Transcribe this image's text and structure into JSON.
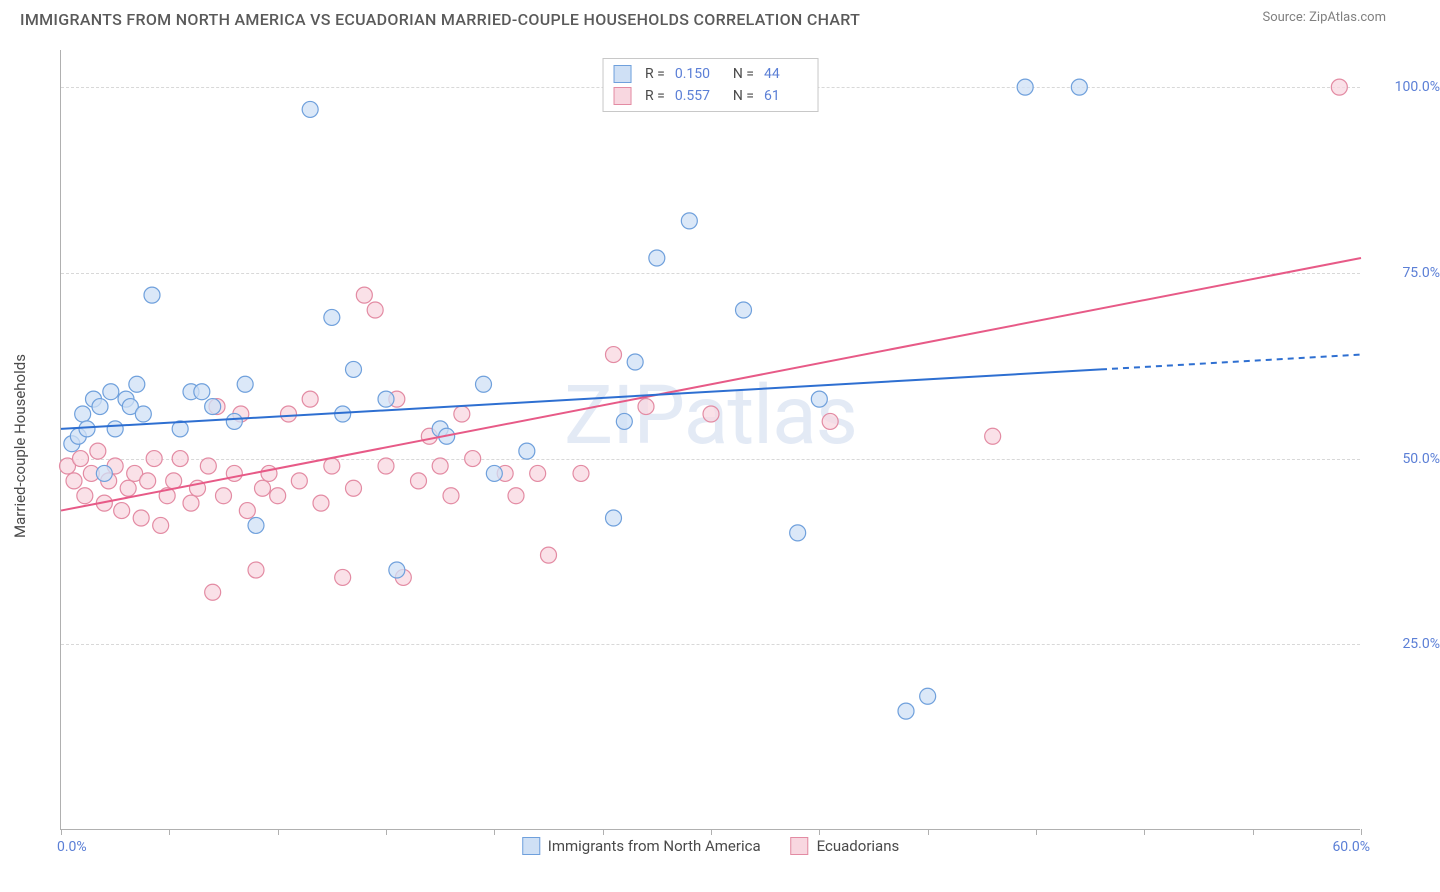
{
  "title": "IMMIGRANTS FROM NORTH AMERICA VS ECUADORIAN MARRIED-COUPLE HOUSEHOLDS CORRELATION CHART",
  "source_label": "Source: ",
  "source_name": "ZipAtlas.com",
  "watermark": "ZIPatlas",
  "ylabel": "Married-couple Households",
  "chart": {
    "type": "scatter-with-regression",
    "background_color": "#ffffff",
    "grid_color": "#d8d8d8",
    "axis_color": "#b0b0b0",
    "tick_label_color": "#5b7fd6",
    "xlim": [
      0,
      60
    ],
    "ylim": [
      0,
      105
    ],
    "xticks": [
      0,
      5,
      10,
      15,
      20,
      25,
      30,
      35,
      40,
      45,
      50,
      55,
      60
    ],
    "xlim_labels": {
      "left": "0.0%",
      "right": "60.0%"
    },
    "yticks": [
      {
        "v": 25,
        "label": "25.0%"
      },
      {
        "v": 50,
        "label": "50.0%"
      },
      {
        "v": 75,
        "label": "75.0%"
      },
      {
        "v": 100,
        "label": "100.0%"
      }
    ],
    "marker_radius": 8,
    "marker_stroke_width": 1.2,
    "line_width": 2,
    "series": [
      {
        "key": "blue",
        "name": "Immigrants from North America",
        "fill": "#cfe0f5",
        "stroke": "#6fa0dc",
        "line_color": "#2e6fd1",
        "r_label": "R =",
        "r_value": "0.150",
        "n_label": "N =",
        "n_value": "44",
        "regression": {
          "x1": 0,
          "y1": 54,
          "x2": 60,
          "y2": 64,
          "dash_from_x": 48
        },
        "points": [
          [
            0.5,
            52
          ],
          [
            0.8,
            53
          ],
          [
            1.0,
            56
          ],
          [
            1.2,
            54
          ],
          [
            1.5,
            58
          ],
          [
            1.8,
            57
          ],
          [
            2.0,
            48
          ],
          [
            2.3,
            59
          ],
          [
            2.5,
            54
          ],
          [
            3.0,
            58
          ],
          [
            3.2,
            57
          ],
          [
            3.5,
            60
          ],
          [
            3.8,
            56
          ],
          [
            4.2,
            72
          ],
          [
            5.5,
            54
          ],
          [
            6.0,
            59
          ],
          [
            6.5,
            59
          ],
          [
            7.0,
            57
          ],
          [
            8.0,
            55
          ],
          [
            8.5,
            60
          ],
          [
            9.0,
            41
          ],
          [
            11.5,
            97
          ],
          [
            12.5,
            69
          ],
          [
            13.0,
            56
          ],
          [
            13.5,
            62
          ],
          [
            15.0,
            58
          ],
          [
            15.5,
            35
          ],
          [
            17.5,
            54
          ],
          [
            17.8,
            53
          ],
          [
            19.5,
            60
          ],
          [
            20.0,
            48
          ],
          [
            21.5,
            51
          ],
          [
            25.5,
            42
          ],
          [
            26.0,
            55
          ],
          [
            26.5,
            63
          ],
          [
            27.5,
            77
          ],
          [
            29.0,
            82
          ],
          [
            31.5,
            70
          ],
          [
            34.0,
            40
          ],
          [
            35.0,
            58
          ],
          [
            39.0,
            16
          ],
          [
            40.0,
            18
          ],
          [
            44.5,
            100
          ],
          [
            47.0,
            100
          ]
        ]
      },
      {
        "key": "pink",
        "name": "Ecuadorians",
        "fill": "#f8d7e0",
        "stroke": "#e38ba3",
        "line_color": "#e75a87",
        "r_label": "R =",
        "r_value": "0.557",
        "n_label": "N =",
        "n_value": "61",
        "regression": {
          "x1": 0,
          "y1": 43,
          "x2": 60,
          "y2": 77,
          "dash_from_x": null
        },
        "points": [
          [
            0.3,
            49
          ],
          [
            0.6,
            47
          ],
          [
            0.9,
            50
          ],
          [
            1.1,
            45
          ],
          [
            1.4,
            48
          ],
          [
            1.7,
            51
          ],
          [
            2.0,
            44
          ],
          [
            2.2,
            47
          ],
          [
            2.5,
            49
          ],
          [
            2.8,
            43
          ],
          [
            3.1,
            46
          ],
          [
            3.4,
            48
          ],
          [
            3.7,
            42
          ],
          [
            4.0,
            47
          ],
          [
            4.3,
            50
          ],
          [
            4.6,
            41
          ],
          [
            4.9,
            45
          ],
          [
            5.2,
            47
          ],
          [
            5.5,
            50
          ],
          [
            6.0,
            44
          ],
          [
            6.3,
            46
          ],
          [
            6.8,
            49
          ],
          [
            7.0,
            32
          ],
          [
            7.2,
            57
          ],
          [
            7.5,
            45
          ],
          [
            8.0,
            48
          ],
          [
            8.3,
            56
          ],
          [
            8.6,
            43
          ],
          [
            9.0,
            35
          ],
          [
            9.3,
            46
          ],
          [
            9.6,
            48
          ],
          [
            10.0,
            45
          ],
          [
            10.5,
            56
          ],
          [
            11.0,
            47
          ],
          [
            11.5,
            58
          ],
          [
            12.0,
            44
          ],
          [
            12.5,
            49
          ],
          [
            13.0,
            34
          ],
          [
            13.5,
            46
          ],
          [
            14.0,
            72
          ],
          [
            14.5,
            70
          ],
          [
            15.0,
            49
          ],
          [
            15.5,
            58
          ],
          [
            15.8,
            34
          ],
          [
            16.5,
            47
          ],
          [
            17.0,
            53
          ],
          [
            17.5,
            49
          ],
          [
            18.0,
            45
          ],
          [
            18.5,
            56
          ],
          [
            19.0,
            50
          ],
          [
            20.5,
            48
          ],
          [
            21.0,
            45
          ],
          [
            22.0,
            48
          ],
          [
            22.5,
            37
          ],
          [
            24.0,
            48
          ],
          [
            25.5,
            64
          ],
          [
            27.0,
            57
          ],
          [
            30.0,
            56
          ],
          [
            35.5,
            55
          ],
          [
            43.0,
            53
          ],
          [
            59.0,
            100
          ]
        ]
      }
    ]
  }
}
